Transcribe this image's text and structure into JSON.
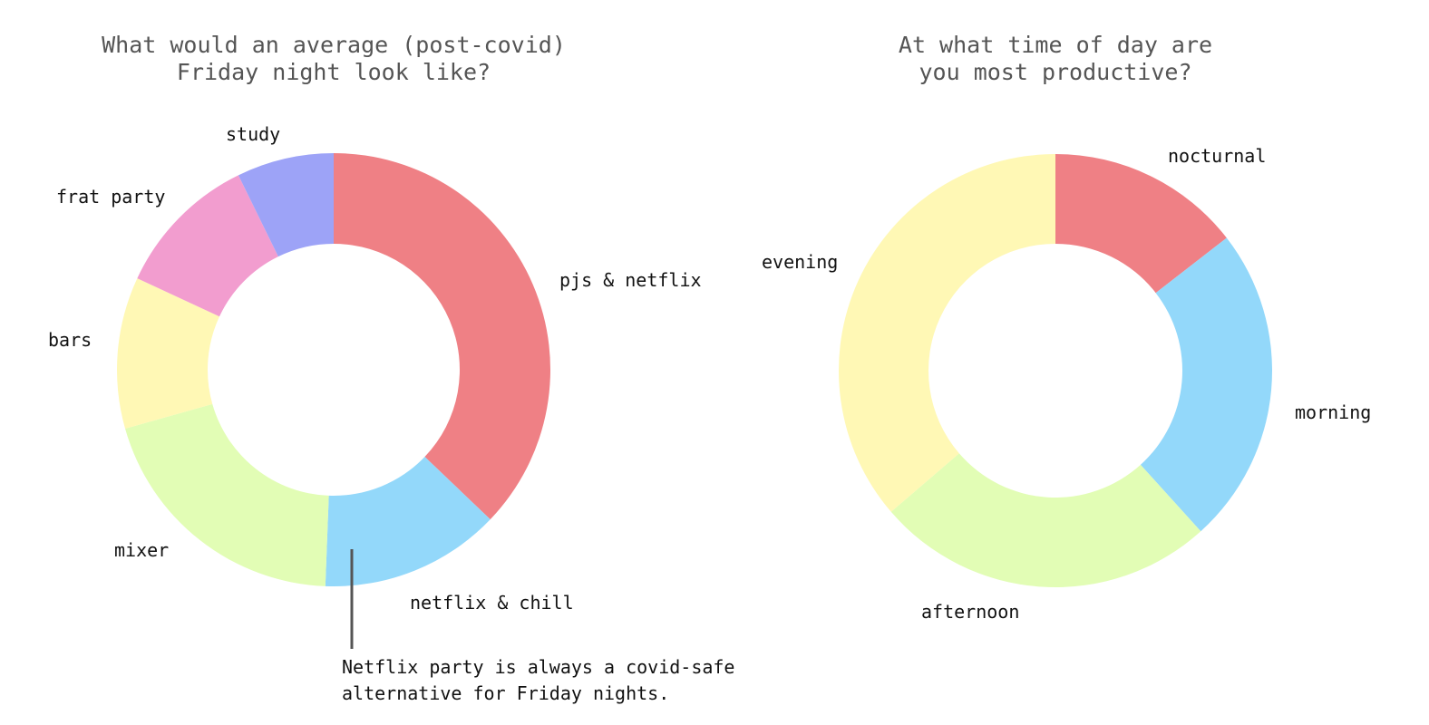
{
  "chart_data": [
    {
      "type": "pie",
      "variant": "donut",
      "title": "What would an average (post-covid) Friday night look like?",
      "title_lines": [
        "What would an average (post-covid)",
        "Friday night look like?"
      ],
      "start": "12 o'clock",
      "direction": "clockwise",
      "slices": [
        {
          "label": "pjs & netflix",
          "value": 36.4,
          "color": "#EF8085"
        },
        {
          "label": "netflix & chill",
          "value": 13.2,
          "color": "#93D8FA"
        },
        {
          "label": "mixer",
          "value": 19.6,
          "color": "#E2FDB5"
        },
        {
          "label": "bars",
          "value": 11.1,
          "color": "#FFF8B5"
        },
        {
          "label": "frat party",
          "value": 10.6,
          "color": "#F29DCF"
        },
        {
          "label": "study",
          "value": 7.1,
          "color": "#9DA3F7"
        }
      ],
      "annotation": {
        "target": "netflix & chill",
        "lines": [
          "Netflix party is always a covid-safe",
          "alternative for Friday nights."
        ]
      }
    },
    {
      "type": "pie",
      "variant": "donut",
      "title": "At what time of day are you most productive?",
      "title_lines": [
        "At what time of day are",
        "you most productive?"
      ],
      "start": "12 o'clock",
      "direction": "clockwise",
      "slices": [
        {
          "label": "nocturnal",
          "value": 14.5,
          "color": "#EF8085"
        },
        {
          "label": "morning",
          "value": 23.8,
          "color": "#93D8FA"
        },
        {
          "label": "afternoon",
          "value": 25.4,
          "color": "#E2FDB5"
        },
        {
          "label": "evening",
          "value": 36.3,
          "color": "#FFF8B5"
        }
      ]
    }
  ]
}
